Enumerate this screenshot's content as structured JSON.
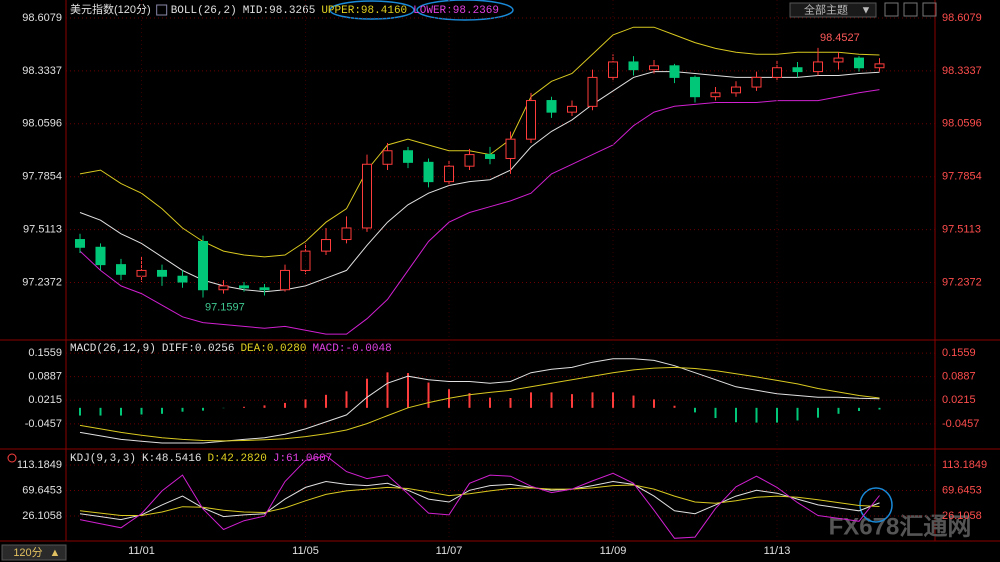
{
  "header": {
    "theme_button": "全部主题",
    "period": "120分"
  },
  "watermark": "FX678汇通网",
  "chart_data": [
    {
      "type": "candlestick",
      "title": "美元指数(120分)",
      "legend": [
        {
          "label": "BOLL(26,2)",
          "color": "#e0e0e0"
        },
        {
          "label": "MID:98.3265",
          "color": "#e0e0e0"
        },
        {
          "label": "UPPER:98.4160",
          "color": "#e0d020"
        },
        {
          "label": "LOWER:98.2369",
          "color": "#e040e0"
        }
      ],
      "categories": [
        null,
        null,
        null,
        "11/01",
        null,
        null,
        null,
        null,
        null,
        null,
        null,
        "11/05",
        null,
        null,
        null,
        null,
        null,
        null,
        "11/07",
        null,
        null,
        null,
        null,
        null,
        null,
        null,
        "11/09",
        null,
        null,
        null,
        null,
        null,
        null,
        null,
        "11/13",
        null,
        null,
        null,
        null,
        null
      ],
      "open": [
        97.46,
        97.42,
        97.33,
        97.27,
        97.3,
        97.27,
        97.45,
        97.2,
        97.22,
        97.21,
        97.2,
        97.3,
        97.4,
        97.46,
        97.52,
        97.85,
        97.92,
        97.86,
        97.76,
        97.84,
        97.9,
        97.88,
        97.98,
        98.18,
        98.12,
        98.15,
        98.3,
        98.38,
        98.34,
        98.36,
        98.3,
        98.2,
        98.22,
        98.25,
        98.3,
        98.35,
        98.33,
        98.38,
        98.4,
        98.35
      ],
      "high": [
        97.49,
        97.44,
        97.36,
        97.37,
        97.33,
        97.3,
        97.48,
        97.25,
        97.24,
        97.23,
        97.33,
        97.44,
        97.52,
        97.58,
        97.9,
        97.96,
        97.94,
        97.88,
        97.87,
        97.93,
        97.94,
        98.02,
        98.22,
        98.2,
        98.18,
        98.34,
        98.42,
        98.41,
        98.39,
        98.37,
        98.31,
        98.25,
        98.28,
        98.33,
        98.39,
        98.38,
        98.4527,
        98.43,
        98.41,
        98.4
      ],
      "low": [
        97.39,
        97.3,
        97.25,
        97.24,
        97.22,
        97.21,
        97.1597,
        97.18,
        97.19,
        97.17,
        97.19,
        97.28,
        97.38,
        97.44,
        97.5,
        97.82,
        97.83,
        97.73,
        97.74,
        97.82,
        97.85,
        97.8,
        97.96,
        98.09,
        98.1,
        98.13,
        98.28,
        98.31,
        98.32,
        98.27,
        98.17,
        98.18,
        98.2,
        98.23,
        98.28,
        98.3,
        98.31,
        98.34,
        98.33,
        98.33
      ],
      "close": [
        97.42,
        97.33,
        97.28,
        97.3,
        97.27,
        97.24,
        97.2,
        97.22,
        97.21,
        97.2,
        97.3,
        97.4,
        97.46,
        97.52,
        97.85,
        97.92,
        97.86,
        97.76,
        97.84,
        97.9,
        97.88,
        97.98,
        98.18,
        98.12,
        98.15,
        98.3,
        98.38,
        98.34,
        98.36,
        98.3,
        98.2,
        98.22,
        98.25,
        98.3,
        98.35,
        98.33,
        98.38,
        98.4,
        98.35,
        98.37
      ],
      "up_color": "#ff3c3c",
      "down_color": "#00c878",
      "bands": [
        {
          "color": "#d8c820",
          "values": [
            97.8,
            97.82,
            97.75,
            97.7,
            97.62,
            97.52,
            97.45,
            97.4,
            97.38,
            97.37,
            97.38,
            97.45,
            97.55,
            97.62,
            97.82,
            97.95,
            97.98,
            97.95,
            97.92,
            97.92,
            97.9,
            97.98,
            98.2,
            98.28,
            98.32,
            98.42,
            98.52,
            98.56,
            98.56,
            98.52,
            98.48,
            98.45,
            98.43,
            98.42,
            98.42,
            98.43,
            98.43,
            98.43,
            98.42,
            98.416
          ]
        },
        {
          "color": "#e0e0e0",
          "values": [
            97.6,
            97.56,
            97.49,
            97.44,
            97.37,
            97.3,
            97.25,
            97.22,
            97.2,
            97.19,
            97.2,
            97.22,
            97.26,
            97.3,
            97.43,
            97.55,
            97.64,
            97.7,
            97.74,
            97.76,
            97.77,
            97.82,
            97.94,
            98.02,
            98.08,
            98.16,
            98.23,
            98.3,
            98.33,
            98.33,
            98.32,
            98.31,
            98.3,
            98.3,
            98.3,
            98.3,
            98.31,
            98.31,
            98.32,
            98.3265
          ]
        },
        {
          "color": "#d020d0",
          "values": [
            97.4,
            97.3,
            97.22,
            97.18,
            97.12,
            97.06,
            97.03,
            97.02,
            97.01,
            97.0,
            97.01,
            96.99,
            96.97,
            96.97,
            97.05,
            97.15,
            97.3,
            97.45,
            97.55,
            97.6,
            97.63,
            97.66,
            97.7,
            97.8,
            97.85,
            97.9,
            97.95,
            98.05,
            98.12,
            98.15,
            98.16,
            98.17,
            98.17,
            98.17,
            98.18,
            98.18,
            98.18,
            98.2,
            98.22,
            98.2369
          ]
        }
      ],
      "ylim": [
        96.95,
        98.675
      ],
      "yticks": [
        97.2372,
        97.5113,
        97.7854,
        98.0596,
        98.3337,
        98.6079
      ],
      "grid": true
    },
    {
      "type": "bar",
      "legend": [
        {
          "label": "MACD(26,12,9)",
          "color": "#e0e0e0"
        },
        {
          "label": "DIFF:0.0256",
          "color": "#e0e0e0"
        },
        {
          "label": "DEA:0.0280",
          "color": "#e0d020"
        },
        {
          "label": "MACD:-0.0048",
          "color": "#e040e0"
        }
      ],
      "values": [
        -0.022,
        -0.022,
        -0.022,
        -0.019,
        -0.017,
        -0.011,
        -0.008,
        -0.001,
        0.003,
        0.007,
        0.014,
        0.024,
        0.037,
        0.047,
        0.083,
        0.101,
        0.099,
        0.072,
        0.053,
        0.042,
        0.029,
        0.028,
        0.044,
        0.044,
        0.039,
        0.044,
        0.044,
        0.035,
        0.024,
        0.006,
        -0.013,
        -0.029,
        -0.041,
        -0.042,
        -0.042,
        -0.036,
        -0.028,
        -0.017,
        -0.009,
        -0.0048
      ],
      "up_color": "#ff3c3c",
      "down_color": "#00c878",
      "series": [
        {
          "color": "#e0e0e0",
          "values": [
            -0.07,
            -0.08,
            -0.09,
            -0.095,
            -0.1,
            -0.1,
            -0.1,
            -0.095,
            -0.09,
            -0.085,
            -0.075,
            -0.06,
            -0.04,
            -0.02,
            0.03,
            0.07,
            0.09,
            0.08,
            0.075,
            0.075,
            0.07,
            0.075,
            0.1,
            0.11,
            0.115,
            0.13,
            0.14,
            0.14,
            0.135,
            0.12,
            0.1,
            0.08,
            0.06,
            0.05,
            0.04,
            0.035,
            0.03,
            0.03,
            0.027,
            0.0256
          ]
        },
        {
          "color": "#d8c820",
          "values": [
            -0.05,
            -0.06,
            -0.07,
            -0.078,
            -0.085,
            -0.09,
            -0.093,
            -0.094,
            -0.093,
            -0.091,
            -0.088,
            -0.082,
            -0.074,
            -0.063,
            -0.045,
            -0.022,
            0.0,
            0.015,
            0.027,
            0.037,
            0.044,
            0.05,
            0.06,
            0.07,
            0.08,
            0.09,
            0.1,
            0.108,
            0.113,
            0.115,
            0.112,
            0.106,
            0.097,
            0.088,
            0.078,
            0.068,
            0.055,
            0.045,
            0.035,
            0.028
          ]
        }
      ],
      "ylim": [
        -0.1115,
        0.1874
      ],
      "yticks": [
        -0.0457,
        0.0215,
        0.0887,
        0.1559
      ],
      "grid": true
    },
    {
      "type": "line",
      "legend": [
        {
          "label": "KDJ(9,3,3)",
          "color": "#e0e0e0"
        },
        {
          "label": "K:48.5416",
          "color": "#e0e0e0"
        },
        {
          "label": "D:42.2820",
          "color": "#e0d020"
        },
        {
          "label": "J:61.0607",
          "color": "#e040e0"
        }
      ],
      "series": [
        {
          "color": "#e0e0e0",
          "values": [
            30,
            25,
            20,
            28,
            45,
            60,
            40,
            25,
            28,
            30,
            55,
            75,
            85,
            80,
            78,
            82,
            70,
            55,
            50,
            70,
            78,
            80,
            75,
            70,
            72,
            78,
            85,
            80,
            60,
            35,
            30,
            45,
            60,
            70,
            65,
            55,
            45,
            40,
            35,
            48.5416
          ]
        },
        {
          "color": "#d8c820",
          "values": [
            35,
            31,
            27,
            27,
            33,
            42,
            41,
            36,
            33,
            32,
            40,
            52,
            63,
            69,
            72,
            75,
            73,
            67,
            61,
            64,
            69,
            73,
            74,
            72,
            72,
            74,
            78,
            79,
            72,
            60,
            50,
            48,
            52,
            58,
            60,
            58,
            54,
            49,
            44,
            42.282
          ]
        },
        {
          "color": "#d020d0",
          "values": [
            20,
            13,
            6,
            30,
            69,
            96,
            38,
            3,
            18,
            26,
            85,
            121,
            129,
            102,
            90,
            96,
            64,
            31,
            28,
            82,
            96,
            94,
            77,
            66,
            72,
            86,
            99,
            82,
            36,
            -12,
            -10,
            39,
            76,
            94,
            75,
            49,
            27,
            22,
            17,
            61.0607
          ]
        }
      ],
      "ylim": [
        -14.87,
        135.38
      ],
      "yticks": [
        26.1058,
        69.6453,
        113.1849
      ],
      "grid": true
    }
  ]
}
